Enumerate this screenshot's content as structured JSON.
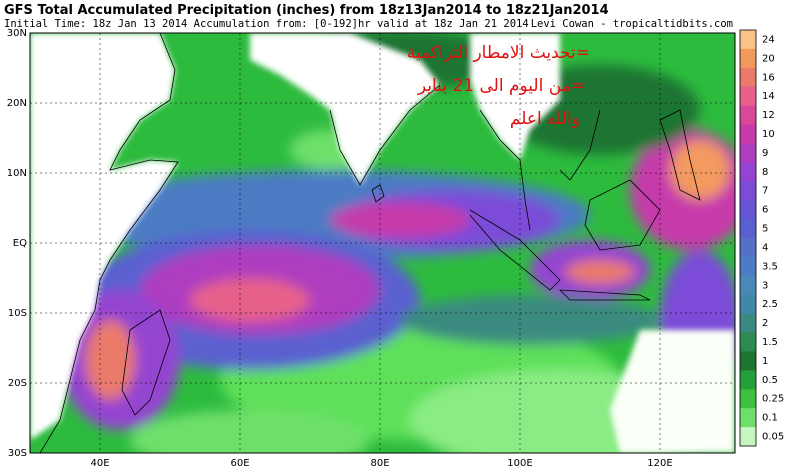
{
  "header": {
    "title": "GFS Total Accumulated Precipitation (inches) from 18z13Jan2014 to 18z21Jan2014",
    "subtitle": "Initial Time: 18z Jan 13 2014 Accumulation from: [0-192]hr valid at 18z Jan 21 2014",
    "credit": "Levi Cowan - tropicaltidbits.com"
  },
  "annotations": [
    "=تحديث الامطار التراكمية",
    "=من اليوم الى 21 يناير",
    "والله اعلم"
  ],
  "map": {
    "lat_labels": [
      "30N",
      "20N",
      "10N",
      "EQ",
      "10S",
      "20S",
      "30S"
    ],
    "lon_labels": [
      "40E",
      "60E",
      "80E",
      "100E",
      "120E"
    ]
  },
  "colorbar": {
    "labels": [
      "24",
      "20",
      "16",
      "14",
      "12",
      "10",
      "9",
      "8",
      "7",
      "6",
      "5",
      "4",
      "3.5",
      "3",
      "2.5",
      "2",
      "1.5",
      "1",
      "0.5",
      "0.25",
      "0.1",
      "0.05"
    ],
    "colors": [
      "#f9c28a",
      "#f29a5e",
      "#ea7a6a",
      "#e6608a",
      "#d84a98",
      "#c63aaa",
      "#ae3ec0",
      "#9444d0",
      "#7c4cd8",
      "#6654d6",
      "#5a60d0",
      "#5470c8",
      "#4c7cc4",
      "#4a88b8",
      "#4088a8",
      "#3a8a80",
      "#2e8a50",
      "#1f7430",
      "#24a03a",
      "#3cc040",
      "#6ee06a",
      "#c6f6c0"
    ]
  }
}
